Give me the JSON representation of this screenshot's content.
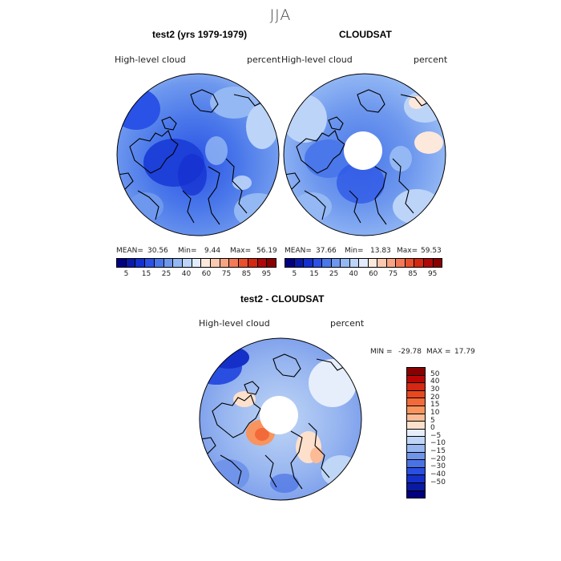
{
  "page": {
    "season": "JJA"
  },
  "panels": [
    {
      "title": "test2 (yrs 1979-1979)",
      "variable": "High-level cloud",
      "units": "percent",
      "stats": {
        "mean_label": "MEAN=",
        "mean": "30.56",
        "min_label": "Min=",
        "min": "9.44",
        "max_label": "Max=",
        "max": "56.19"
      },
      "colorbar": {
        "colors": [
          "#000080",
          "#0a1aa8",
          "#1530d0",
          "#2a52e6",
          "#4a78ea",
          "#6e98ee",
          "#94b8f4",
          "#bcd4f8",
          "#e2ecfc",
          "#fde8dc",
          "#fbc8b0",
          "#f8a484",
          "#f27a58",
          "#e8502e",
          "#d42812",
          "#b00808",
          "#8a0000"
        ],
        "tick_labels": [
          "5",
          "15",
          "25",
          "40",
          "60",
          "75",
          "85",
          "95"
        ]
      }
    },
    {
      "title": "CLOUDSAT",
      "variable": "High-level cloud",
      "units": "percent",
      "stats": {
        "mean_label": "MEAN=",
        "mean": "37.66",
        "min_label": "Min=",
        "min": "13.83",
        "max_label": "Max=",
        "max": "59.53"
      },
      "colorbar": {
        "colors": [
          "#000080",
          "#0a1aa8",
          "#1530d0",
          "#2a52e6",
          "#4a78ea",
          "#6e98ee",
          "#94b8f4",
          "#bcd4f8",
          "#e2ecfc",
          "#fde8dc",
          "#fbc8b0",
          "#f8a484",
          "#f27a58",
          "#e8502e",
          "#d42812",
          "#b00808",
          "#8a0000"
        ],
        "tick_labels": [
          "5",
          "15",
          "25",
          "40",
          "60",
          "75",
          "85",
          "95"
        ]
      }
    },
    {
      "title": "test2 - CLOUDSAT",
      "variable": "High-level cloud",
      "units": "percent",
      "stats": {
        "min_label": "MIN =",
        "min": "-29.78",
        "max_label": "MAX =",
        "max": "17.79"
      },
      "colorbar": {
        "colors": [
          "#8a0000",
          "#b80606",
          "#d42812",
          "#e8481f",
          "#f26a3a",
          "#f8945e",
          "#fbbb96",
          "#fde0cc",
          "#e6eefc",
          "#c0d6f6",
          "#98b6f0",
          "#7094ea",
          "#4a72e4",
          "#2a4ee0",
          "#1430c8",
          "#0a1aa0",
          "#000080"
        ],
        "tick_labels": [
          "50",
          "40",
          "30",
          "20",
          "15",
          "10",
          "5",
          "0",
          "−5",
          "−10",
          "−15",
          "−20",
          "−30",
          "−40",
          "−50"
        ]
      }
    }
  ]
}
